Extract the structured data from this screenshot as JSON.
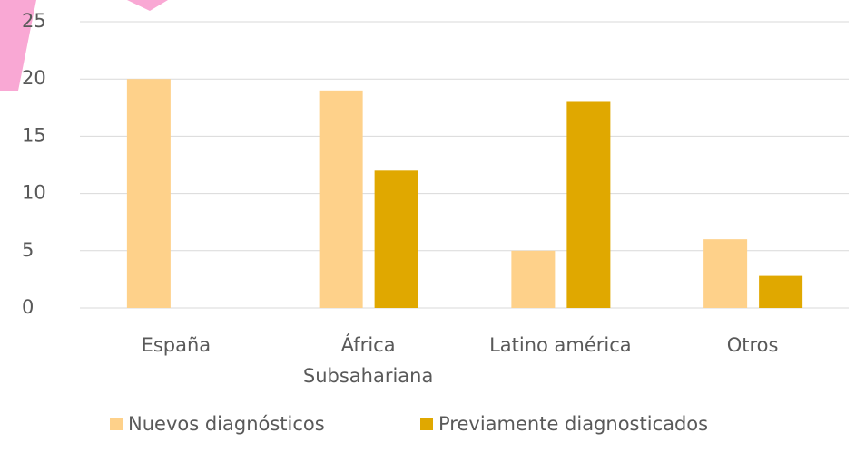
{
  "chart_data": {
    "type": "bar",
    "categories": [
      "España",
      "África Subsahariana",
      "Latino américa",
      "Otros"
    ],
    "series": [
      {
        "name": "Nuevos diagnósticos",
        "color": "#fed18a",
        "values": [
          20,
          19,
          5,
          6
        ]
      },
      {
        "name": "Previamente diagnosticados",
        "color": "#e0a800",
        "values": [
          0,
          12,
          18,
          2.8
        ]
      }
    ],
    "ylim": [
      0,
      25
    ],
    "yticks": [
      0,
      5,
      10,
      15,
      20,
      25
    ],
    "grid": true,
    "legend": "bottom"
  }
}
